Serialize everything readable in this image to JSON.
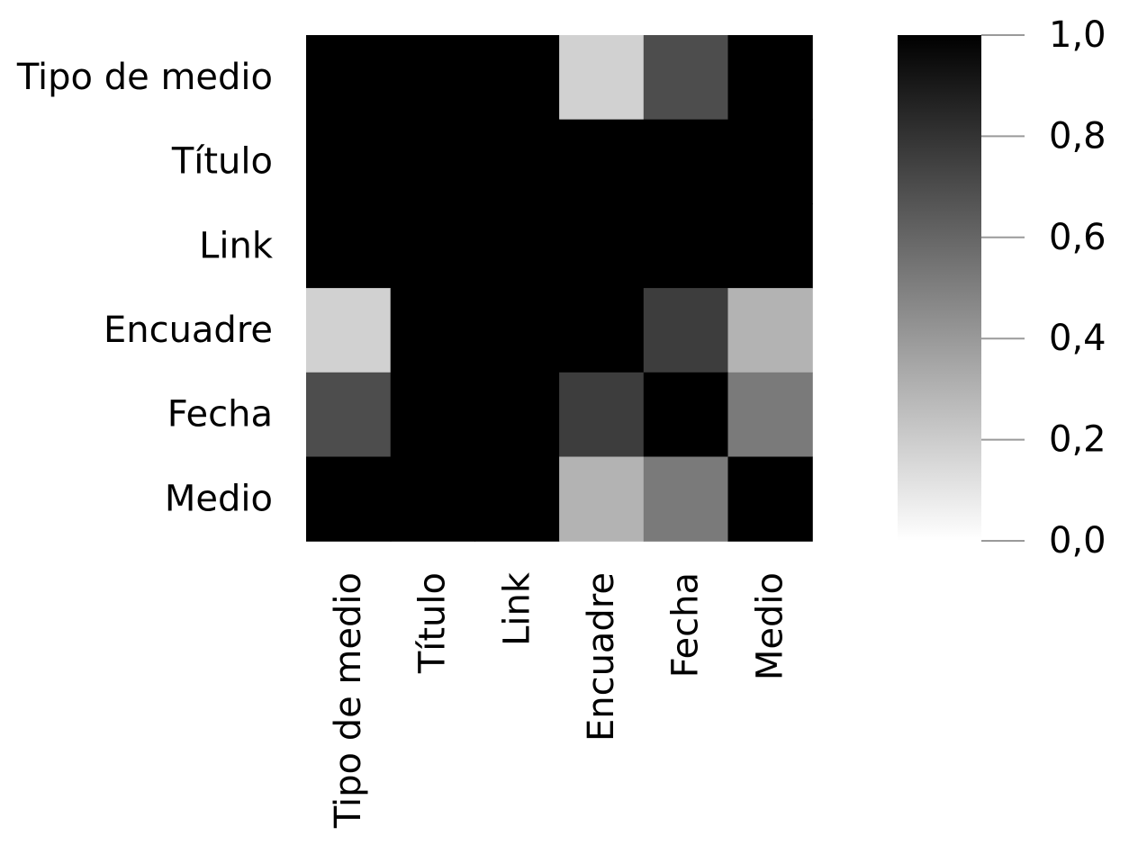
{
  "chart_data": {
    "type": "heatmap",
    "title": "",
    "xlabel": "",
    "ylabel": "",
    "rows": [
      "Tipo de medio",
      "Título",
      "Link",
      "Encuadre",
      "Fecha",
      "Medio"
    ],
    "columns": [
      "Tipo de medio",
      "Título",
      "Link",
      "Encuadre",
      "Fecha",
      "Medio"
    ],
    "values": [
      [
        1.0,
        1.0,
        1.0,
        0.18,
        0.7,
        1.0
      ],
      [
        1.0,
        1.0,
        1.0,
        1.0,
        1.0,
        1.0
      ],
      [
        1.0,
        1.0,
        1.0,
        1.0,
        1.0,
        1.0
      ],
      [
        0.18,
        1.0,
        1.0,
        1.0,
        0.76,
        0.3
      ],
      [
        0.7,
        1.0,
        1.0,
        0.76,
        1.0,
        0.52
      ],
      [
        1.0,
        1.0,
        1.0,
        0.3,
        0.52,
        1.0
      ]
    ],
    "colorbar": {
      "min": 0.0,
      "max": 1.0,
      "ticks": [
        "0,0",
        "0,2",
        "0,4",
        "0,6",
        "0,8",
        "1,0"
      ],
      "tick_values": [
        0.0,
        0.2,
        0.4,
        0.6,
        0.8,
        1.0
      ],
      "colormap": [
        "#ffffff",
        "#000000"
      ]
    },
    "grid": false,
    "legend": "right"
  }
}
